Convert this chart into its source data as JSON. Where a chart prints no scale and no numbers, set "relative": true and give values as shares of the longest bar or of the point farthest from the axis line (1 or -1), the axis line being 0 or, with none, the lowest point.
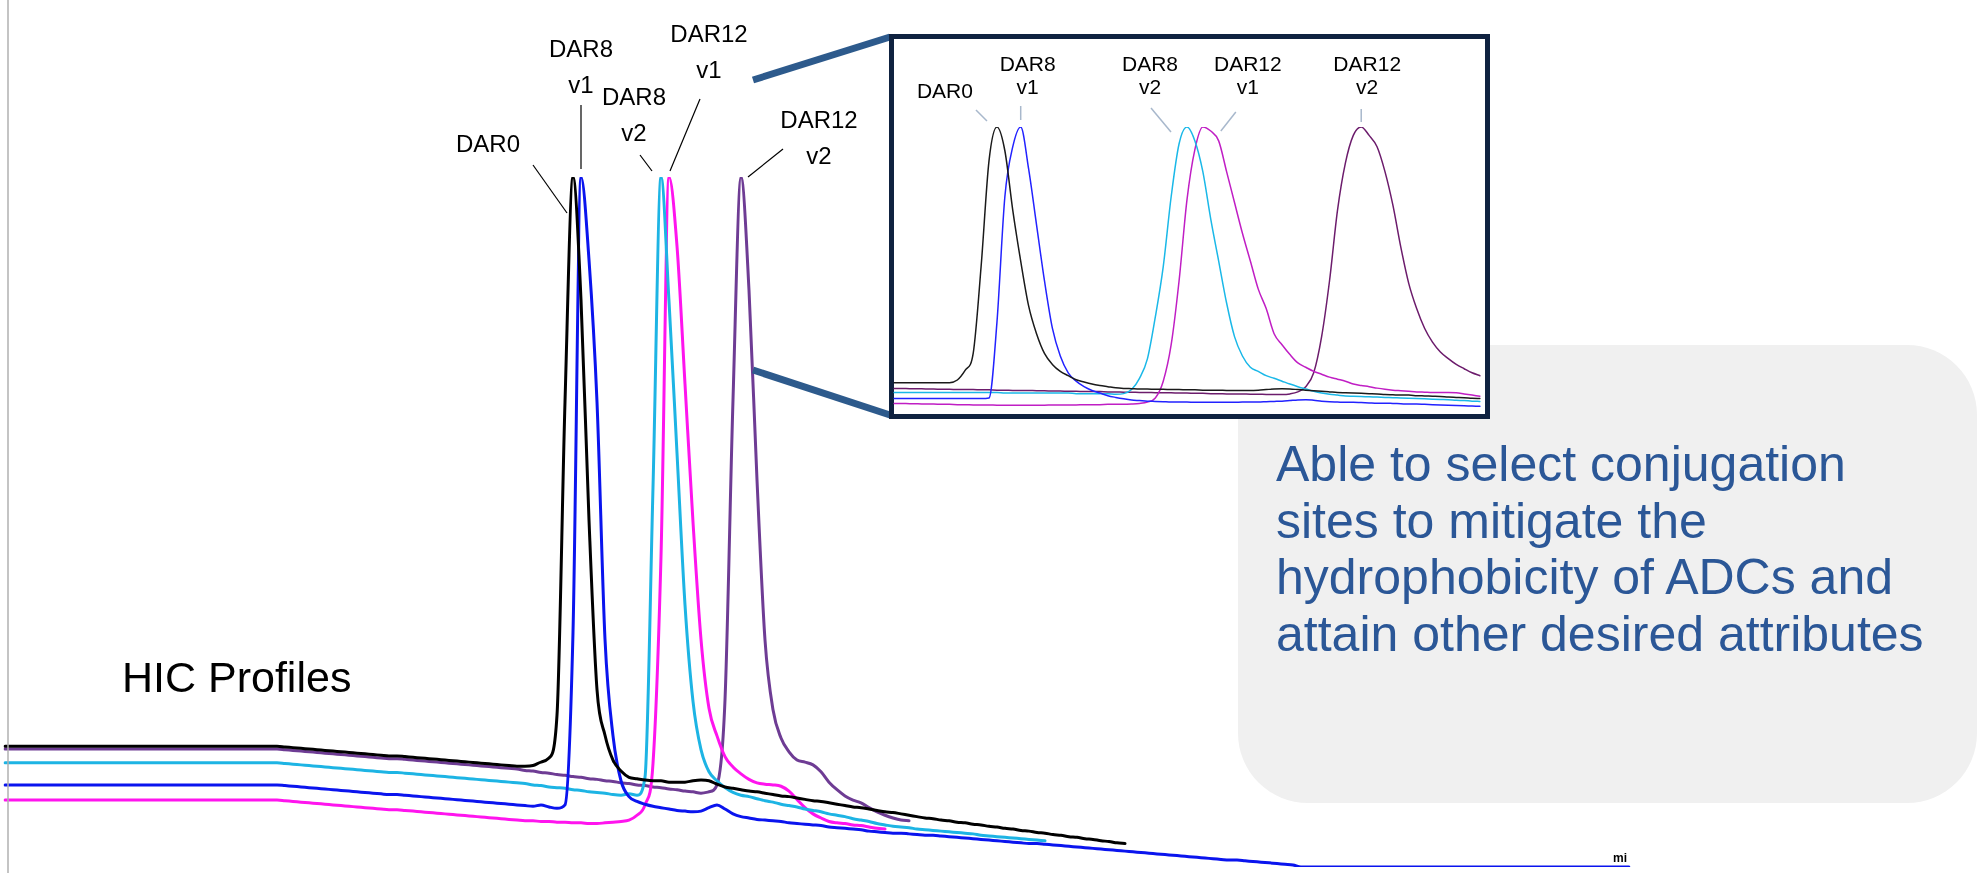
{
  "chart_data": [
    {
      "type": "line",
      "title": "HIC Profiles",
      "xlabel": "mi",
      "relative": true,
      "grid": false,
      "legend": false,
      "tick_labels": false,
      "annotations": [
        "Able to select conjugation sites to mitigate the hydrophobicity of ADCs and attain other desired attributes"
      ],
      "categories": [
        null,
        null,
        null,
        null,
        null,
        null,
        null,
        null,
        null,
        null,
        null,
        null,
        null,
        null,
        null,
        null,
        null,
        null,
        null,
        null,
        null,
        null,
        null,
        null,
        null,
        null,
        null,
        null,
        null,
        null,
        null,
        null,
        null,
        null,
        null,
        null,
        null,
        null,
        null,
        null,
        null,
        null,
        null,
        null,
        null,
        null,
        null,
        null,
        null,
        null,
        null,
        null,
        null,
        null,
        null,
        null,
        null,
        null,
        null,
        null,
        null,
        null,
        null,
        null,
        null,
        null,
        null,
        null,
        null,
        null,
        null,
        null,
        null,
        null,
        null,
        null,
        null,
        null,
        null,
        null,
        null,
        null,
        null,
        null,
        null,
        null,
        null,
        null,
        null,
        null,
        null,
        null,
        null,
        null,
        null,
        null,
        null,
        null,
        null,
        null,
        null,
        null,
        null,
        null,
        null,
        null,
        null,
        null,
        null,
        null,
        null,
        null,
        null,
        null,
        null,
        null,
        null,
        null,
        null,
        null,
        null,
        null,
        null,
        null,
        null,
        null,
        null,
        null,
        null,
        null,
        null,
        null,
        null,
        null,
        null,
        null,
        null,
        null,
        null,
        null,
        null,
        null,
        null,
        null,
        null,
        null,
        null,
        null,
        null,
        null,
        null,
        null,
        null,
        null,
        null,
        null,
        null,
        null,
        null,
        null,
        null,
        null,
        null,
        null,
        null,
        null,
        null,
        null,
        null,
        null,
        null,
        null,
        null,
        null,
        null,
        null,
        null,
        null,
        null,
        null,
        null,
        null,
        null,
        null,
        null,
        null,
        null,
        null,
        null,
        null,
        null,
        null,
        null,
        null,
        null,
        null,
        null,
        null,
        null,
        null,
        null,
        null,
        null,
        null
      ],
      "series": [
        {
          "name": "DAR0",
          "color": "#000000",
          "values": [
            0.175,
            0.175,
            0.175,
            0.175,
            0.175,
            0.175,
            0.175,
            0.175,
            0.175,
            0.175,
            0.175,
            0.175,
            0.175,
            0.175,
            0.175,
            0.175,
            0.175,
            0.175,
            0.175,
            0.175,
            0.175,
            0.175,
            0.175,
            0.175,
            0.175,
            0.175,
            0.175,
            0.175,
            0.175,
            0.175,
            0.175,
            0.175,
            0.175,
            0.175,
            0.175,
            0.174,
            0.173,
            0.172,
            0.171,
            0.17,
            0.169,
            0.168,
            0.167,
            0.166,
            0.165,
            0.164,
            0.163,
            0.162,
            0.161,
            0.161,
            0.16,
            0.159,
            0.158,
            0.157,
            0.156,
            0.155,
            0.154,
            0.153,
            0.152,
            0.151,
            0.15,
            0.149,
            0.148,
            0.147,
            0.146,
            0.146,
            0.147,
            0.152,
            0.158,
            0.22,
            0.674,
            1,
            0.822,
            0.503,
            0.257,
            0.191,
            0.155,
            0.139,
            0.13,
            0.128,
            0.126,
            0.125,
            0.125,
            0.123,
            0.123,
            0.123,
            0.125,
            0.126,
            0.125,
            0.12,
            0.116,
            0.114,
            0.112,
            0.11,
            0.109,
            0.107,
            0.105,
            0.103,
            0.102,
            0.1,
            0.098,
            0.096,
            0.095,
            0.093,
            0.091,
            0.089,
            0.087,
            0.086,
            0.084,
            0.082,
            0.08,
            0.079,
            0.077,
            0.075,
            0.073,
            0.071,
            0.07,
            0.068,
            0.067,
            0.065,
            0.064,
            0.062,
            0.061,
            0.059,
            0.058,
            0.056,
            0.055,
            0.053,
            0.052,
            0.05,
            0.049,
            0.047,
            0.046,
            0.044,
            0.043,
            0.041,
            0.04,
            0.038,
            0.037,
            0.035,
            0.034,
            null,
            null,
            null,
            null,
            null,
            null,
            null,
            null,
            null,
            null,
            null,
            null,
            null,
            null,
            null,
            null,
            null,
            null,
            null,
            null,
            null,
            null,
            null,
            null,
            null,
            null,
            null,
            null,
            null,
            null,
            null,
            null,
            null,
            null,
            null,
            null,
            null,
            null,
            null,
            null,
            null,
            null,
            null,
            null,
            null,
            null,
            null,
            null,
            null,
            null,
            null,
            null,
            null,
            null,
            null,
            null,
            null,
            null,
            null,
            null,
            null,
            null,
            null
          ]
        },
        {
          "name": "DAR8 v1",
          "color": "#0a14ee",
          "values": [
            0.119,
            0.119,
            0.119,
            0.119,
            0.119,
            0.119,
            0.119,
            0.119,
            0.119,
            0.119,
            0.119,
            0.119,
            0.119,
            0.119,
            0.119,
            0.119,
            0.119,
            0.119,
            0.119,
            0.119,
            0.119,
            0.119,
            0.119,
            0.119,
            0.119,
            0.119,
            0.119,
            0.119,
            0.119,
            0.119,
            0.119,
            0.119,
            0.119,
            0.119,
            0.119,
            0.118,
            0.117,
            0.116,
            0.115,
            0.114,
            0.113,
            0.112,
            0.111,
            0.11,
            0.109,
            0.108,
            0.107,
            0.106,
            0.105,
            0.105,
            0.104,
            0.103,
            0.102,
            0.101,
            0.1,
            0.099,
            0.098,
            0.097,
            0.096,
            0.095,
            0.094,
            0.093,
            0.092,
            0.091,
            0.09,
            0.089,
            0.088,
            0.09,
            0.087,
            0.085,
            0.09,
            0.34,
            1,
            0.88,
            0.674,
            0.33,
            0.19,
            0.125,
            0.102,
            0.095,
            0.091,
            0.088,
            0.086,
            0.084,
            0.082,
            0.081,
            0.08,
            0.081,
            0.086,
            0.09,
            0.084,
            0.077,
            0.073,
            0.071,
            0.069,
            0.068,
            0.067,
            0.066,
            0.064,
            0.063,
            0.062,
            0.061,
            0.06,
            0.058,
            0.057,
            0.056,
            0.055,
            0.054,
            0.052,
            0.051,
            0.05,
            0.049,
            0.049,
            0.048,
            0.047,
            0.046,
            0.046,
            0.045,
            0.044,
            0.043,
            0.042,
            0.041,
            0.04,
            0.039,
            0.038,
            0.037,
            0.036,
            0.035,
            0.034,
            0.034,
            0.033,
            0.032,
            0.031,
            0.03,
            0.029,
            0.028,
            0.027,
            0.026,
            0.025,
            0.024,
            0.023,
            0.022,
            0.021,
            0.02,
            0.019,
            0.018,
            0.017,
            0.016,
            0.015,
            0.014,
            0.013,
            0.012,
            0.011,
            0.01,
            0.01,
            0.009,
            0.008,
            0.007,
            0.006,
            0.005,
            0.004,
            0.003,
            0,
            0,
            0,
            0,
            0,
            0,
            0,
            0,
            0,
            0,
            0,
            0,
            0,
            0,
            0,
            0,
            0,
            0,
            0,
            0,
            0,
            0,
            0,
            0,
            0,
            0,
            0,
            0,
            0,
            0,
            0,
            0,
            0,
            0,
            0,
            0,
            0,
            0,
            0,
            0,
            0,
            0
          ]
        },
        {
          "name": "DAR8 v2",
          "color": "#1db4e4",
          "values": [
            0.151,
            0.151,
            0.151,
            0.151,
            0.151,
            0.151,
            0.151,
            0.151,
            0.151,
            0.151,
            0.151,
            0.151,
            0.151,
            0.151,
            0.151,
            0.151,
            0.151,
            0.151,
            0.151,
            0.151,
            0.151,
            0.151,
            0.151,
            0.151,
            0.151,
            0.151,
            0.151,
            0.151,
            0.151,
            0.151,
            0.151,
            0.151,
            0.151,
            0.151,
            0.151,
            0.15,
            0.149,
            0.148,
            0.147,
            0.146,
            0.145,
            0.144,
            0.143,
            0.142,
            0.141,
            0.14,
            0.139,
            0.138,
            0.137,
            0.137,
            0.136,
            0.135,
            0.134,
            0.133,
            0.132,
            0.131,
            0.13,
            0.129,
            0.128,
            0.127,
            0.126,
            0.125,
            0.124,
            0.123,
            0.122,
            0.121,
            0.119,
            0.118,
            0.116,
            0.115,
            0.114,
            0.112,
            0.111,
            0.109,
            0.108,
            0.107,
            0.105,
            0.104,
            0.106,
            0.104,
            0.13,
            0.55,
            1,
            0.82,
            0.6,
            0.38,
            0.24,
            0.17,
            0.138,
            0.125,
            0.115,
            0.108,
            0.104,
            0.102,
            0.099,
            0.096,
            0.094,
            0.091,
            0.089,
            0.087,
            0.084,
            0.082,
            0.08,
            0.077,
            0.075,
            0.073,
            0.07,
            0.068,
            0.066,
            0.063,
            0.061,
            0.059,
            0.058,
            0.057,
            0.055,
            0.054,
            0.053,
            0.052,
            0.051,
            0.05,
            0.049,
            0.048,
            0.046,
            0.045,
            0.044,
            0.043,
            0.042,
            0.041,
            0.04,
            0.039,
            0.038,
            null,
            null,
            null,
            null,
            null,
            null,
            null,
            null,
            null,
            null,
            null,
            null,
            null,
            null,
            null,
            null,
            null,
            null,
            null,
            null,
            null,
            null,
            null,
            null,
            null,
            null,
            null,
            null,
            null,
            null,
            null,
            null,
            null,
            null,
            null,
            null,
            null,
            null,
            null,
            null,
            null,
            null,
            null,
            null,
            null,
            null,
            null,
            null,
            null,
            null,
            null,
            null,
            null,
            null,
            null,
            null,
            null,
            null,
            null,
            null,
            null,
            null,
            null,
            null,
            null,
            null,
            null,
            null,
            null,
            null,
            null,
            null,
            null
          ]
        },
        {
          "name": "DAR12 v1",
          "color": "#ff14ee",
          "values": [
            0.097,
            0.097,
            0.097,
            0.097,
            0.097,
            0.097,
            0.097,
            0.097,
            0.097,
            0.097,
            0.097,
            0.097,
            0.097,
            0.097,
            0.097,
            0.097,
            0.097,
            0.097,
            0.097,
            0.097,
            0.097,
            0.097,
            0.097,
            0.097,
            0.097,
            0.097,
            0.097,
            0.097,
            0.097,
            0.097,
            0.097,
            0.097,
            0.097,
            0.097,
            0.097,
            0.096,
            0.095,
            0.094,
            0.093,
            0.092,
            0.091,
            0.09,
            0.089,
            0.088,
            0.087,
            0.086,
            0.085,
            0.084,
            0.083,
            0.083,
            0.082,
            0.081,
            0.08,
            0.079,
            0.078,
            0.077,
            0.076,
            0.075,
            0.074,
            0.073,
            0.072,
            0.071,
            0.07,
            0.069,
            0.068,
            0.067,
            0.067,
            0.066,
            0.066,
            0.065,
            0.065,
            0.064,
            0.064,
            0.063,
            0.063,
            0.064,
            0.065,
            0.066,
            0.068,
            0.075,
            0.09,
            0.15,
            0.45,
            1,
            0.9,
            0.7,
            0.5,
            0.33,
            0.23,
            0.19,
            0.16,
            0.145,
            0.135,
            0.127,
            0.122,
            0.12,
            0.119,
            0.117,
            0.11,
            0.098,
            0.086,
            0.077,
            0.071,
            0.066,
            0.064,
            0.063,
            0.061,
            0.06,
            0.058,
            0.056,
            0.055,
            null,
            null,
            null,
            null,
            null,
            null,
            null,
            null,
            null,
            null,
            null,
            null,
            null,
            null,
            null,
            null,
            null,
            null,
            null,
            null,
            null,
            null,
            null,
            null,
            null,
            null,
            null,
            null,
            null,
            null,
            null,
            null,
            null,
            null,
            null,
            null,
            null,
            null,
            null,
            null,
            null,
            null,
            null,
            null,
            null,
            null,
            null,
            null,
            null,
            null,
            null,
            null,
            null,
            null,
            null,
            null,
            null,
            null,
            null,
            null,
            null,
            null,
            null,
            null,
            null,
            null,
            null,
            null,
            null,
            null,
            null,
            null,
            null,
            null,
            null,
            null,
            null,
            null,
            null,
            null,
            null,
            null,
            null,
            null,
            null,
            null,
            null,
            null,
            null,
            null,
            null,
            null,
            null
          ]
        },
        {
          "name": "DAR12 v2",
          "color": "#6e3c94",
          "values": [
            0.171,
            0.171,
            0.171,
            0.171,
            0.171,
            0.171,
            0.171,
            0.171,
            0.171,
            0.171,
            0.171,
            0.171,
            0.171,
            0.171,
            0.171,
            0.171,
            0.171,
            0.171,
            0.171,
            0.171,
            0.171,
            0.171,
            0.171,
            0.171,
            0.171,
            0.171,
            0.171,
            0.171,
            0.171,
            0.171,
            0.171,
            0.171,
            0.171,
            0.171,
            0.171,
            0.17,
            0.169,
            0.168,
            0.167,
            0.166,
            0.165,
            0.164,
            0.163,
            0.162,
            0.161,
            0.16,
            0.159,
            0.158,
            0.157,
            0.157,
            0.156,
            0.155,
            0.154,
            0.153,
            0.152,
            0.151,
            0.15,
            0.149,
            0.148,
            0.147,
            0.146,
            0.145,
            0.144,
            0.143,
            0.142,
            0.14,
            0.139,
            0.137,
            0.136,
            0.134,
            0.133,
            0.131,
            0.13,
            0.128,
            0.127,
            0.125,
            0.124,
            0.122,
            0.121,
            0.119,
            0.118,
            0.116,
            0.115,
            0.113,
            0.112,
            0.11,
            0.109,
            0.107,
            0.109,
            0.119,
            0.242,
            0.677,
            1,
            0.836,
            0.561,
            0.329,
            0.228,
            0.187,
            0.167,
            0.155,
            0.152,
            0.148,
            0.138,
            0.123,
            0.112,
            0.103,
            0.097,
            0.093,
            0.086,
            0.08,
            0.075,
            0.071,
            0.068,
            0.067,
            null,
            null,
            null,
            null,
            null,
            null,
            null,
            null,
            null,
            null,
            null,
            null,
            null,
            null,
            null,
            null,
            null,
            null,
            null,
            null,
            null,
            null,
            null,
            null,
            null,
            null,
            null,
            null,
            null,
            null,
            null,
            null,
            null,
            null,
            null,
            null,
            null,
            null,
            null,
            null,
            null,
            null,
            null,
            null,
            null,
            null,
            null,
            null,
            null,
            null,
            null,
            null,
            null,
            null,
            null,
            null,
            null,
            null,
            null,
            null,
            null,
            null,
            null,
            null,
            null,
            null,
            null,
            null,
            null,
            null,
            null,
            null,
            null,
            null,
            null,
            null,
            null,
            null,
            null,
            null,
            null,
            null,
            null,
            null,
            null,
            null,
            null,
            null,
            null,
            null
          ]
        }
      ]
    },
    {
      "type": "line",
      "relative": true,
      "grid": false,
      "legend": false,
      "tick_labels": false,
      "categories": [
        null,
        null,
        null,
        null,
        null,
        null,
        null,
        null,
        null,
        null,
        null,
        null,
        null,
        null,
        null,
        null,
        null,
        null,
        null,
        null,
        null,
        null,
        null,
        null,
        null,
        null,
        null,
        null,
        null,
        null,
        null,
        null,
        null,
        null,
        null,
        null,
        null,
        null,
        null,
        null,
        null,
        null,
        null,
        null,
        null,
        null,
        null,
        null,
        null,
        null,
        null,
        null,
        null,
        null,
        null,
        null,
        null,
        null,
        null,
        null,
        null,
        null,
        null,
        null,
        null,
        null,
        null,
        null,
        null,
        null,
        null,
        null,
        null,
        null,
        null
      ],
      "series": [
        {
          "name": "DAR0",
          "color": "#1a1a1a",
          "values": [
            0.117,
            0.117,
            0.117,
            0.117,
            0.117,
            0.117,
            0.117,
            0.117,
            0.126,
            0.16,
            0.218,
            0.518,
            0.884,
            1,
            0.918,
            0.712,
            0.537,
            0.382,
            0.286,
            0.218,
            0.18,
            0.156,
            0.141,
            0.127,
            0.119,
            0.112,
            0.107,
            0.103,
            0.099,
            0.097,
            0.096,
            0.095,
            0.095,
            0.094,
            0.094,
            0.093,
            0.093,
            0.092,
            0.092,
            0.091,
            0.091,
            0.091,
            0.09,
            0.09,
            0.09,
            0.09,
            0.091,
            0.093,
            0.095,
            0.096,
            0.095,
            0.093,
            0.091,
            0.089,
            0.087,
            0.085,
            0.083,
            0.082,
            0.081,
            0.08,
            0.079,
            0.078,
            0.076,
            0.075,
            0.074,
            0.074,
            0.072,
            0.071,
            0.07,
            0.069,
            0.067,
            0.066,
            0.065,
            0.063,
            0.062
          ]
        },
        {
          "name": "DAR8 v1",
          "color": "#2222ff",
          "values": [
            0.062,
            0.062,
            0.062,
            0.062,
            0.062,
            0.062,
            0.062,
            0.062,
            0.062,
            0.062,
            0.062,
            0.062,
            0.064,
            0.325,
            0.759,
            0.932,
            1,
            0.855,
            0.662,
            0.469,
            0.305,
            0.209,
            0.151,
            0.122,
            0.103,
            0.09,
            0.081,
            0.072,
            0.066,
            0.061,
            0.057,
            0.055,
            0.053,
            0.052,
            0.051,
            0.05,
            0.05,
            0.05,
            0.049,
            0.049,
            0.049,
            0.049,
            0.049,
            0.049,
            0.05,
            0.05,
            0.05,
            0.051,
            0.052,
            0.053,
            0.055,
            0.057,
            0.058,
            0.056,
            0.053,
            0.051,
            0.05,
            0.049,
            0.049,
            0.048,
            0.047,
            0.046,
            0.046,
            0.045,
            0.044,
            0.043,
            0.043,
            0.042,
            0.041,
            0.04,
            0.039,
            0.038,
            0.037,
            0.036,
            0.035
          ]
        },
        {
          "name": "DAR8 v2",
          "color": "#1ab8e8",
          "values": [
            0.083,
            0.083,
            0.083,
            0.083,
            0.083,
            0.083,
            0.083,
            0.083,
            0.083,
            0.083,
            0.083,
            0.083,
            0.083,
            0.083,
            0.081,
            0.081,
            0.081,
            0.081,
            0.081,
            0.081,
            0.081,
            0.081,
            0.081,
            0.079,
            0.079,
            0.079,
            0.079,
            0.079,
            0.077,
            0.079,
            0.093,
            0.132,
            0.199,
            0.344,
            0.518,
            0.759,
            0.942,
            1,
            0.952,
            0.846,
            0.682,
            0.537,
            0.392,
            0.276,
            0.209,
            0.17,
            0.156,
            0.141,
            0.132,
            0.122,
            0.112,
            0.103,
            0.095,
            0.087,
            0.081,
            0.077,
            0.074,
            0.071,
            0.07,
            0.069,
            0.068,
            0.067,
            0.066,
            0.065,
            0.064,
            0.063,
            0.062,
            0.061,
            0.06,
            0.059,
            0.058,
            0.056,
            0.055,
            0.053,
            0.052
          ]
        },
        {
          "name": "DAR12 v1",
          "color": "#c01ec4",
          "values": [
            0.045,
            0.045,
            0.044,
            0.044,
            0.043,
            0.043,
            0.042,
            0.042,
            0.041,
            0.041,
            0.04,
            0.04,
            0.04,
            0.039,
            0.039,
            0.039,
            0.039,
            0.039,
            0.039,
            0.039,
            0.04,
            0.04,
            0.04,
            0.04,
            0.041,
            0.041,
            0.041,
            0.042,
            0.042,
            0.042,
            0.043,
            0.045,
            0.05,
            0.064,
            0.122,
            0.248,
            0.469,
            0.749,
            0.923,
            1,
            0.986,
            0.952,
            0.846,
            0.739,
            0.633,
            0.537,
            0.44,
            0.373,
            0.286,
            0.248,
            0.214,
            0.185,
            0.17,
            0.156,
            0.146,
            0.136,
            0.129,
            0.122,
            0.112,
            0.107,
            0.103,
            0.098,
            0.094,
            0.091,
            0.089,
            0.087,
            0.085,
            0.084,
            0.083,
            0.083,
            0.083,
            0.082,
            0.078,
            0.074,
            0.07
          ]
        },
        {
          "name": "DAR12 v2",
          "color": "#6c1c6c",
          "values": [
            0.097,
            0.097,
            0.096,
            0.096,
            0.095,
            0.095,
            0.094,
            0.094,
            0.093,
            0.093,
            0.093,
            0.092,
            0.092,
            0.091,
            0.091,
            0.09,
            0.09,
            0.09,
            0.089,
            0.089,
            0.088,
            0.088,
            0.087,
            0.087,
            0.086,
            0.086,
            0.086,
            0.085,
            0.085,
            0.084,
            0.084,
            0.083,
            0.083,
            0.082,
            0.082,
            0.082,
            0.081,
            0.081,
            0.08,
            0.08,
            0.079,
            0.079,
            0.078,
            0.078,
            0.078,
            0.077,
            0.077,
            0.076,
            0.076,
            0.076,
            0.078,
            0.085,
            0.103,
            0.151,
            0.276,
            0.469,
            0.711,
            0.875,
            0.971,
            1,
            0.971,
            0.932,
            0.846,
            0.73,
            0.585,
            0.46,
            0.373,
            0.305,
            0.257,
            0.223,
            0.2,
            0.18,
            0.165,
            0.151,
            0.141
          ]
        }
      ]
    }
  ]
}
